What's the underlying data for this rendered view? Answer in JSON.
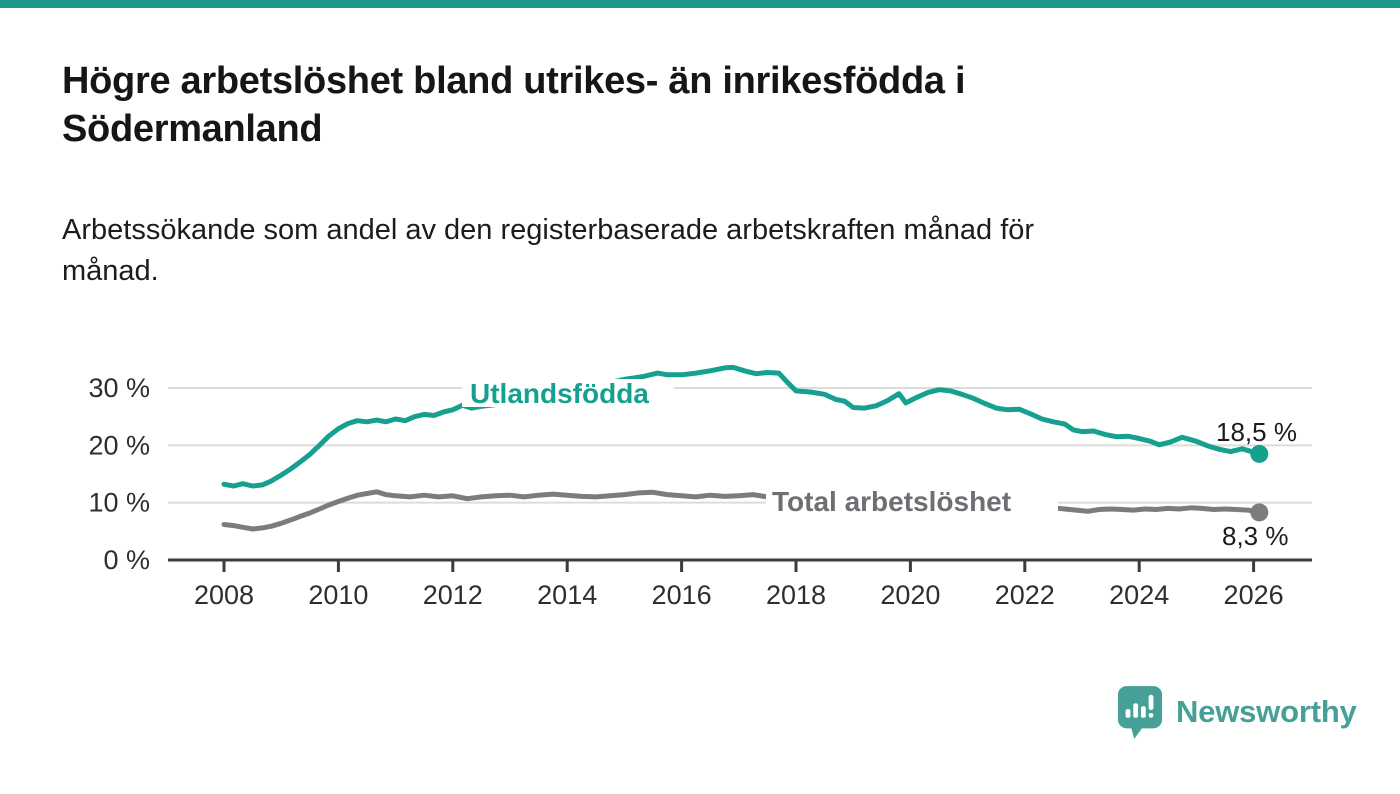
{
  "page": {
    "accent_bar_color": "#1e9a8d",
    "background": "#ffffff"
  },
  "header": {
    "title_lines": [
      "Högre arbetslöshet bland utrikes- än inrikesfödda i",
      "Södermanland"
    ],
    "subtitle_lines": [
      "Arbetssökande som andel av den registerbaserade arbetskraften månad för",
      "månad."
    ]
  },
  "chart_data": {
    "type": "line",
    "title": "Högre arbetslöshet bland utrikes- än inrikesfödda i Södermanland",
    "subtitle": "Arbetssökande som andel av den registerbaserade arbetskraften månad för månad.",
    "xlabel": "",
    "ylabel": "",
    "grid": true,
    "xlim": [
      2007.0,
      2027.0
    ],
    "ylim": [
      0,
      35
    ],
    "x_axis": {
      "ticks": [
        {
          "value": 2008,
          "label": "2008"
        },
        {
          "value": 2010,
          "label": "2010"
        },
        {
          "value": 2012,
          "label": "2012"
        },
        {
          "value": 2014,
          "label": "2014"
        },
        {
          "value": 2016,
          "label": "2016"
        },
        {
          "value": 2018,
          "label": "2018"
        },
        {
          "value": 2020,
          "label": "2020"
        },
        {
          "value": 2022,
          "label": "2022"
        },
        {
          "value": 2024,
          "label": "2024"
        },
        {
          "value": 2026,
          "label": "2026"
        }
      ]
    },
    "y_axis": {
      "ticks": [
        {
          "value": 0,
          "label": "0 %"
        },
        {
          "value": 10,
          "label": "10 %"
        },
        {
          "value": 20,
          "label": "20 %"
        },
        {
          "value": 30,
          "label": "30 %"
        }
      ]
    },
    "series": [
      {
        "name": "Utlandsfödda",
        "color": "#16a08f",
        "label_color": "#16a08f",
        "end_label": "18,5 %",
        "end_value": 18.5,
        "points": [
          [
            2008.0,
            13.2
          ],
          [
            2008.17,
            12.9
          ],
          [
            2008.33,
            13.3
          ],
          [
            2008.5,
            12.9
          ],
          [
            2008.67,
            13.1
          ],
          [
            2008.83,
            13.8
          ],
          [
            2009.0,
            14.8
          ],
          [
            2009.17,
            15.9
          ],
          [
            2009.33,
            17.1
          ],
          [
            2009.5,
            18.4
          ],
          [
            2009.67,
            20.0
          ],
          [
            2009.83,
            21.6
          ],
          [
            2010.0,
            22.9
          ],
          [
            2010.17,
            23.8
          ],
          [
            2010.33,
            24.3
          ],
          [
            2010.5,
            24.1
          ],
          [
            2010.67,
            24.4
          ],
          [
            2010.83,
            24.1
          ],
          [
            2011.0,
            24.6
          ],
          [
            2011.17,
            24.3
          ],
          [
            2011.33,
            25.0
          ],
          [
            2011.5,
            25.4
          ],
          [
            2011.67,
            25.2
          ],
          [
            2011.83,
            25.8
          ],
          [
            2012.0,
            26.2
          ],
          [
            2012.17,
            27.0
          ],
          [
            2012.33,
            26.5
          ],
          [
            2012.5,
            26.8
          ],
          [
            2012.75,
            27.1
          ],
          [
            2013.0,
            27.5
          ],
          [
            2013.33,
            28.0
          ],
          [
            2013.67,
            28.7
          ],
          [
            2014.0,
            29.3
          ],
          [
            2014.33,
            30.0
          ],
          [
            2014.67,
            30.8
          ],
          [
            2015.0,
            31.5
          ],
          [
            2015.33,
            32.0
          ],
          [
            2015.58,
            32.6
          ],
          [
            2015.75,
            32.3
          ],
          [
            2016.0,
            32.3
          ],
          [
            2016.25,
            32.6
          ],
          [
            2016.5,
            33.0
          ],
          [
            2016.75,
            33.5
          ],
          [
            2016.9,
            33.6
          ],
          [
            2017.1,
            33.0
          ],
          [
            2017.3,
            32.5
          ],
          [
            2017.5,
            32.7
          ],
          [
            2017.7,
            32.6
          ],
          [
            2017.85,
            31.0
          ],
          [
            2018.0,
            29.5
          ],
          [
            2018.25,
            29.3
          ],
          [
            2018.5,
            28.9
          ],
          [
            2018.7,
            28.0
          ],
          [
            2018.85,
            27.7
          ],
          [
            2019.0,
            26.6
          ],
          [
            2019.2,
            26.5
          ],
          [
            2019.4,
            26.9
          ],
          [
            2019.6,
            27.8
          ],
          [
            2019.8,
            29.0
          ],
          [
            2019.92,
            27.4
          ],
          [
            2020.1,
            28.3
          ],
          [
            2020.3,
            29.2
          ],
          [
            2020.5,
            29.7
          ],
          [
            2020.7,
            29.5
          ],
          [
            2020.9,
            28.9
          ],
          [
            2021.1,
            28.2
          ],
          [
            2021.3,
            27.3
          ],
          [
            2021.5,
            26.5
          ],
          [
            2021.7,
            26.2
          ],
          [
            2021.9,
            26.3
          ],
          [
            2022.1,
            25.5
          ],
          [
            2022.3,
            24.6
          ],
          [
            2022.5,
            24.1
          ],
          [
            2022.7,
            23.7
          ],
          [
            2022.85,
            22.7
          ],
          [
            2023.0,
            22.4
          ],
          [
            2023.2,
            22.5
          ],
          [
            2023.4,
            21.9
          ],
          [
            2023.6,
            21.5
          ],
          [
            2023.8,
            21.6
          ],
          [
            2024.0,
            21.2
          ],
          [
            2024.2,
            20.7
          ],
          [
            2024.35,
            20.1
          ],
          [
            2024.55,
            20.6
          ],
          [
            2024.75,
            21.4
          ],
          [
            2025.0,
            20.7
          ],
          [
            2025.2,
            19.9
          ],
          [
            2025.4,
            19.3
          ],
          [
            2025.6,
            18.9
          ],
          [
            2025.8,
            19.4
          ],
          [
            2026.0,
            18.8
          ],
          [
            2026.1,
            18.5
          ]
        ]
      },
      {
        "name": "Total arbetslöshet",
        "color": "#7c7c80",
        "label_color": "#6e6e73",
        "end_label": "8,3 %",
        "end_value": 8.3,
        "points": [
          [
            2008.0,
            6.2
          ],
          [
            2008.17,
            6.0
          ],
          [
            2008.33,
            5.7
          ],
          [
            2008.5,
            5.4
          ],
          [
            2008.67,
            5.6
          ],
          [
            2008.83,
            5.9
          ],
          [
            2009.0,
            6.4
          ],
          [
            2009.17,
            7.0
          ],
          [
            2009.33,
            7.6
          ],
          [
            2009.5,
            8.2
          ],
          [
            2009.67,
            8.9
          ],
          [
            2009.83,
            9.6
          ],
          [
            2010.0,
            10.2
          ],
          [
            2010.17,
            10.8
          ],
          [
            2010.33,
            11.3
          ],
          [
            2010.5,
            11.6
          ],
          [
            2010.67,
            11.9
          ],
          [
            2010.83,
            11.4
          ],
          [
            2011.0,
            11.2
          ],
          [
            2011.25,
            11.0
          ],
          [
            2011.5,
            11.3
          ],
          [
            2011.75,
            11.0
          ],
          [
            2012.0,
            11.2
          ],
          [
            2012.25,
            10.7
          ],
          [
            2012.5,
            11.0
          ],
          [
            2012.75,
            11.2
          ],
          [
            2013.0,
            11.3
          ],
          [
            2013.25,
            11.0
          ],
          [
            2013.5,
            11.3
          ],
          [
            2013.75,
            11.5
          ],
          [
            2014.0,
            11.3
          ],
          [
            2014.25,
            11.1
          ],
          [
            2014.5,
            11.0
          ],
          [
            2014.75,
            11.2
          ],
          [
            2015.0,
            11.4
          ],
          [
            2015.25,
            11.7
          ],
          [
            2015.5,
            11.8
          ],
          [
            2015.75,
            11.4
          ],
          [
            2016.0,
            11.2
          ],
          [
            2016.25,
            11.0
          ],
          [
            2016.5,
            11.3
          ],
          [
            2016.75,
            11.1
          ],
          [
            2017.0,
            11.2
          ],
          [
            2017.25,
            11.4
          ],
          [
            2017.5,
            11.0
          ],
          [
            2018.0,
            10.8
          ],
          [
            2018.5,
            10.6
          ],
          [
            2019.0,
            10.4
          ],
          [
            2019.5,
            10.5
          ],
          [
            2020.0,
            10.9
          ],
          [
            2020.5,
            11.2
          ],
          [
            2021.0,
            10.9
          ],
          [
            2021.5,
            10.4
          ],
          [
            2022.0,
            10.0
          ],
          [
            2022.3,
            9.4
          ],
          [
            2022.5,
            9.1
          ],
          [
            2022.7,
            8.9
          ],
          [
            2022.9,
            8.7
          ],
          [
            2023.1,
            8.5
          ],
          [
            2023.3,
            8.8
          ],
          [
            2023.5,
            8.9
          ],
          [
            2023.7,
            8.8
          ],
          [
            2023.9,
            8.7
          ],
          [
            2024.1,
            8.9
          ],
          [
            2024.3,
            8.8
          ],
          [
            2024.5,
            9.0
          ],
          [
            2024.7,
            8.9
          ],
          [
            2024.9,
            9.1
          ],
          [
            2025.1,
            9.0
          ],
          [
            2025.3,
            8.8
          ],
          [
            2025.5,
            8.9
          ],
          [
            2025.7,
            8.8
          ],
          [
            2025.9,
            8.7
          ],
          [
            2026.1,
            8.3
          ]
        ]
      }
    ],
    "legend_position": "inline-labels"
  },
  "footer": {
    "brand": "Newsworthy",
    "brand_color": "#47a097"
  }
}
